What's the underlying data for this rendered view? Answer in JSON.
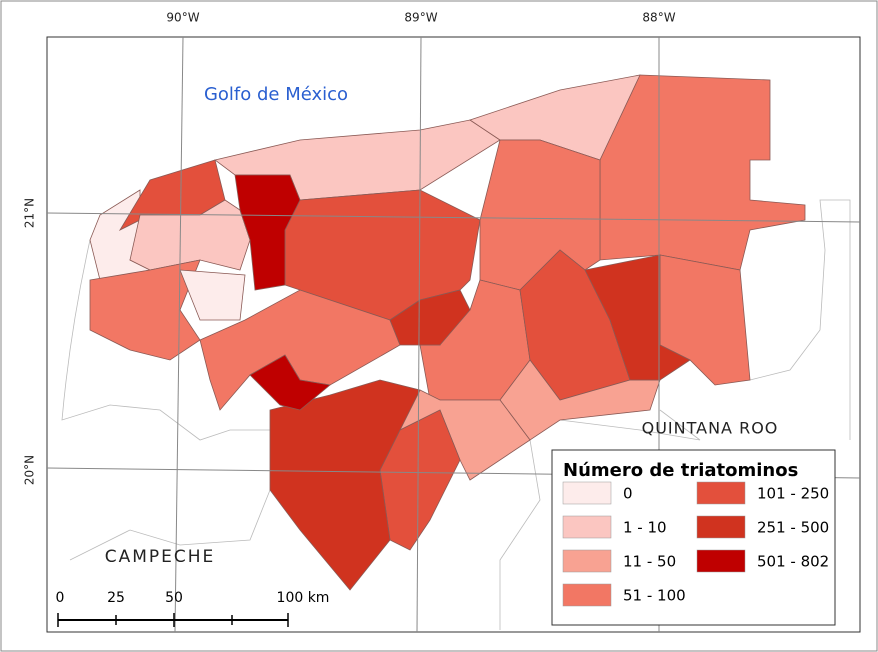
{
  "graticule": {
    "longitudes": [
      "90°W",
      "89°W",
      "88°W"
    ],
    "latitudes": [
      "21°N",
      "20°N"
    ]
  },
  "labels": {
    "sea": "Golfo de México",
    "state_east": "QUINTANA ROO",
    "state_west": "CAMPECHE"
  },
  "legend": {
    "title": "Número de triatominos",
    "items": [
      {
        "label": "0",
        "color": "#fdeceb"
      },
      {
        "label": "1 - 10",
        "color": "#fbc6c1"
      },
      {
        "label": "11 - 50",
        "color": "#f8a292"
      },
      {
        "label": "51 - 100",
        "color": "#f27764"
      },
      {
        "label": "101 - 250",
        "color": "#e3503c"
      },
      {
        "label": "251 - 500",
        "color": "#d0331f"
      },
      {
        "label": "501 - 802",
        "color": "#bf0000"
      }
    ]
  },
  "scale_bar": {
    "labels": [
      "0",
      "25",
      "50",
      "100 km"
    ]
  }
}
